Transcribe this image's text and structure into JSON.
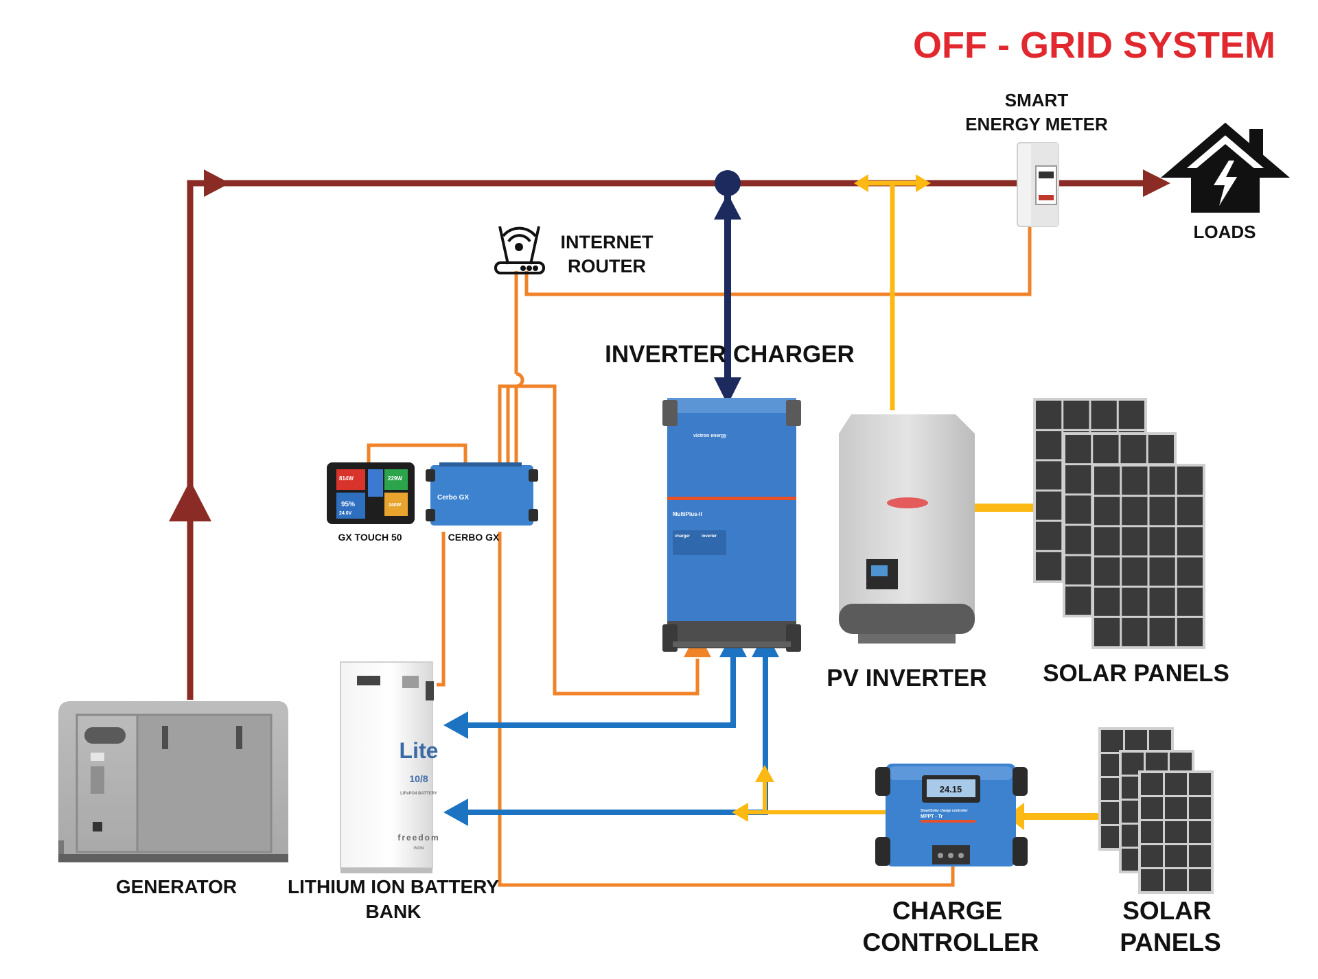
{
  "title": "OFF - GRID SYSTEM",
  "labels": {
    "smart_meter": [
      "SMART",
      "ENERGY METER"
    ],
    "loads": "LOADS",
    "router": [
      "INTERNET",
      "ROUTER"
    ],
    "inverter_charger": "INVERTER CHARGER",
    "gx_touch": "GX TOUCH 50",
    "cerbo": "CERBO GX",
    "pv_inverter": "PV INVERTER",
    "solar_panels_top": "SOLAR PANELS",
    "generator": "GENERATOR",
    "battery": [
      "LITHIUM ION BATTERY",
      "BANK"
    ],
    "charge_controller": [
      "CHARGE",
      "CONTROLLER"
    ],
    "solar_panels_bottom": [
      "SOLAR",
      "PANELS"
    ]
  },
  "device_text": {
    "battery_brand": "Lite",
    "battery_model": "10/8",
    "battery_sub": "LIFePO4 BATTERY",
    "battery_maker": "freedom",
    "battery_maker_sub": "WON",
    "multiplus": "MultiPlus-II",
    "multiplus_charger": "charger",
    "multiplus_inverter": "inverter",
    "victron": "victron energy",
    "cerbo_face": "Cerbo GX",
    "smartsolar": "SmartSolar charge controller",
    "mppt": "MPPT - Tr",
    "cc_display": "24.15",
    "touch_values": [
      "814W",
      "229W",
      "95%",
      "24.0V",
      "240W"
    ]
  },
  "colors": {
    "title_red": "#e0282e",
    "ac_line": "#8b2b25",
    "dc_blue": "#1b73c2",
    "comm_orange": "#f08228",
    "pv_yellow": "#fdb913",
    "navy": "#1c2a5e",
    "victron_blue": "#3d7cc9"
  },
  "icons": [
    "house-lightning-icon",
    "wifi-router-icon"
  ]
}
